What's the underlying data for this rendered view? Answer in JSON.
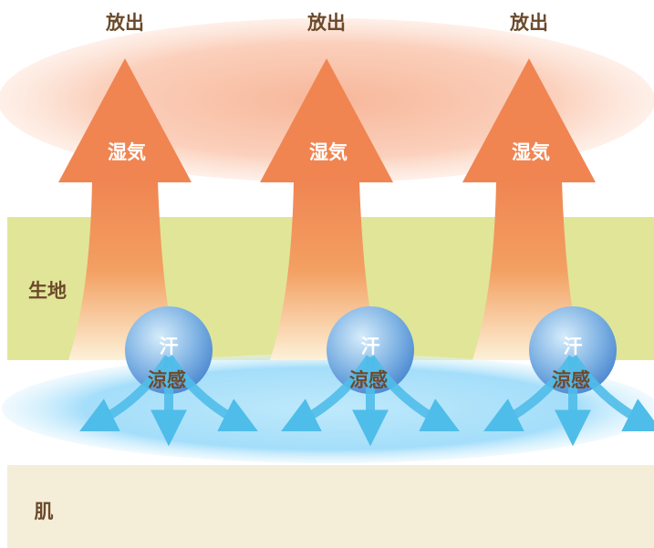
{
  "columns": [
    {
      "release": "放出",
      "vapor": "湿気",
      "sweat": "汗",
      "cool": "涼感"
    },
    {
      "release": "放出",
      "vapor": "湿気",
      "sweat": "汗",
      "cool": "涼感"
    },
    {
      "release": "放出",
      "vapor": "湿気",
      "sweat": "汗",
      "cool": "涼感"
    }
  ],
  "layers": {
    "fabric": "生地",
    "skin": "肌"
  }
}
